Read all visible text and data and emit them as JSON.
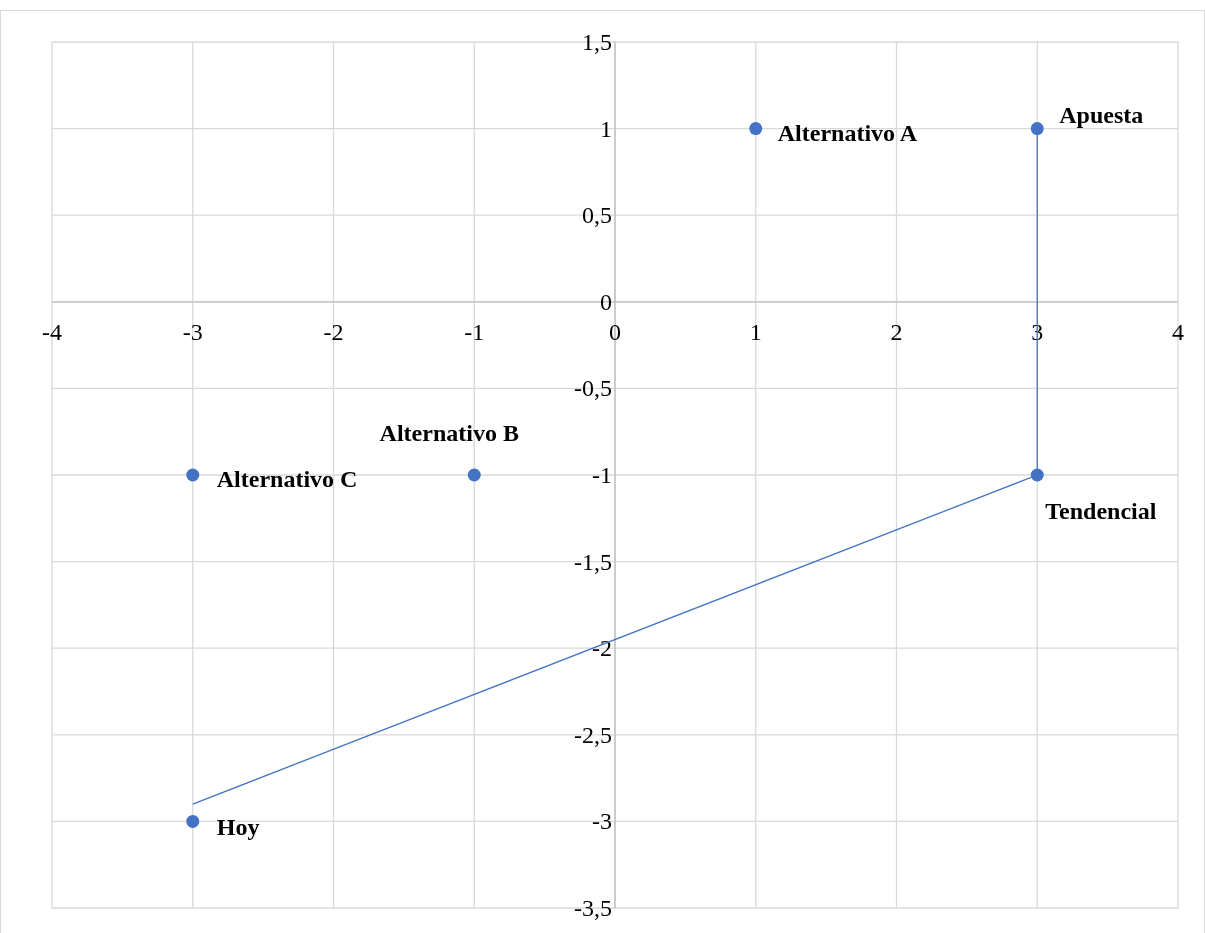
{
  "chart_data": {
    "type": "scatter",
    "xlim": [
      -4,
      4
    ],
    "ylim": [
      -3.5,
      1.5
    ],
    "xticks": [
      -4,
      -3,
      -2,
      -1,
      0,
      1,
      2,
      3,
      4
    ],
    "yticks": [
      {
        "value": -3.5,
        "label": "-3,5"
      },
      -3,
      {
        "value": -2.5,
        "label": "-2,5"
      },
      -2,
      {
        "value": -1.5,
        "label": "-1,5"
      },
      -1,
      {
        "value": -0.5,
        "label": "-0,5"
      },
      0,
      {
        "value": 0.5,
        "label": "0,5"
      },
      1,
      {
        "value": 1.5,
        "label": "1,5"
      }
    ],
    "grid": true,
    "series": [
      {
        "marker": "circle",
        "color": "#4472c4",
        "x": [
          -3,
          -3,
          -1,
          1,
          3,
          3
        ],
        "values": [
          -3,
          -1,
          -1,
          1,
          1,
          -1
        ]
      },
      {
        "type": "line",
        "marker": "none",
        "color": "#4472c4",
        "x": [
          -3,
          3,
          3
        ],
        "values": [
          -2.9,
          -1,
          1
        ]
      }
    ],
    "annotations": [
      {
        "text": "Hoy",
        "x": -3,
        "y": -3
      },
      {
        "text": "Alternativo C",
        "x": -3,
        "y": -1
      },
      {
        "text": "Alternativo B",
        "x": -1,
        "y": -1
      },
      {
        "text": "Alternativo A",
        "x": 1,
        "y": 1
      },
      {
        "text": "Apuesta",
        "x": 3,
        "y": 1
      },
      {
        "text": "Tendencial",
        "x": 3,
        "y": -1
      }
    ]
  }
}
